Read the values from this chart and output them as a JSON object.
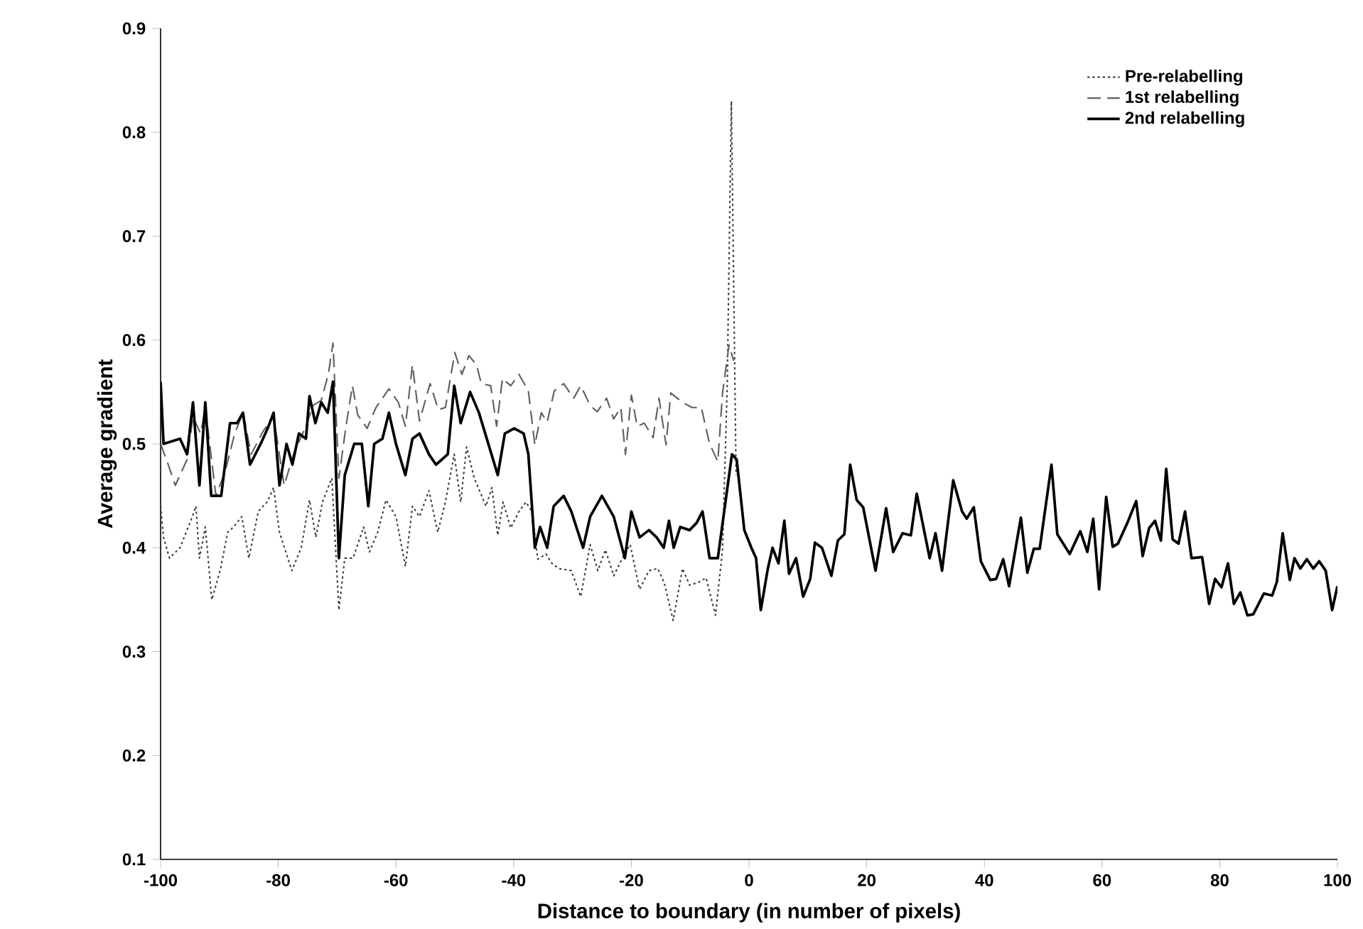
{
  "chart_data": {
    "type": "line",
    "xlabel": "Distance to boundary (in number of pixels)",
    "ylabel": "Average gradient",
    "xlim": [
      -100,
      100
    ],
    "ylim": [
      0.1,
      0.9
    ],
    "xticks": [
      -100,
      -80,
      -60,
      -40,
      -20,
      0,
      20,
      40,
      60,
      80,
      100
    ],
    "yticks": [
      0.1,
      0.2,
      0.3,
      0.4,
      0.5,
      0.6,
      0.7,
      0.8,
      0.9
    ],
    "grid": false,
    "legend": "top right",
    "marker": "none",
    "series": [
      {
        "name": "Pre-relabelling",
        "color": "#404040",
        "line_style": "dotted",
        "x": [
          -100,
          -99.5,
          -98.5,
          -96.7,
          -94.6,
          -94,
          -93.4,
          -92.4,
          -91.3,
          -89.8,
          -88.6,
          -87.6,
          -86.2,
          -85,
          -83.4,
          -81.9,
          -80.8,
          -79.8,
          -77.7,
          -76.1,
          -74.7,
          -73.6,
          -72.5,
          -70.9,
          -69.7,
          -68.7,
          -67.3,
          -65.5,
          -64.5,
          -63.1,
          -61.7,
          -60,
          -58.4,
          -57.2,
          -56,
          -54.4,
          -52.9,
          -51.6,
          -50.1,
          -49,
          -48,
          -46.7,
          -44.7,
          -43.7,
          -42.7,
          -41.8,
          -40.5,
          -39.1,
          -37.9,
          -36.9,
          -35.9,
          -34.5,
          -33.5,
          -32.3,
          -30.2,
          -28.6,
          -27,
          -25.7,
          -24.4,
          -23,
          -21.6,
          -20.2,
          -18.6,
          -17,
          -15.5,
          -14.4,
          -12.9,
          -11.3,
          -10.1,
          -8.5,
          -7.3,
          -5.7,
          -4.5,
          -3.7,
          -3,
          -2.2
        ],
        "values": [
          0.44,
          0.41,
          0.39,
          0.4,
          0.43,
          0.44,
          0.39,
          0.42,
          0.35,
          0.38,
          0.415,
          0.42,
          0.43,
          0.39,
          0.435,
          0.444,
          0.458,
          0.415,
          0.378,
          0.4,
          0.446,
          0.41,
          0.444,
          0.467,
          0.34,
          0.39,
          0.39,
          0.42,
          0.396,
          0.415,
          0.446,
          0.43,
          0.382,
          0.44,
          0.43,
          0.455,
          0.415,
          0.444,
          0.49,
          0.444,
          0.497,
          0.467,
          0.44,
          0.458,
          0.412,
          0.444,
          0.419,
          0.435,
          0.444,
          0.435,
          0.389,
          0.394,
          0.385,
          0.38,
          0.378,
          0.353,
          0.403,
          0.378,
          0.398,
          0.373,
          0.389,
          0.403,
          0.36,
          0.378,
          0.38,
          0.366,
          0.33,
          0.38,
          0.364,
          0.367,
          0.371,
          0.335,
          0.398,
          0.558,
          0.83,
          0.47
        ]
      },
      {
        "name": "1st relabelling",
        "color": "#606060",
        "line_style": "dashed",
        "x": [
          -100,
          -98.7,
          -97.5,
          -95.5,
          -94.5,
          -93.2,
          -92.4,
          -90.6,
          -89,
          -87.4,
          -86,
          -84.6,
          -82.6,
          -80.8,
          -79,
          -77.3,
          -75.3,
          -74.1,
          -72.7,
          -71.5,
          -70.7,
          -69.7,
          -68.5,
          -67.4,
          -66.5,
          -64.9,
          -63.4,
          -61.2,
          -59.6,
          -58.4,
          -57.2,
          -56,
          -54.2,
          -52.8,
          -51.6,
          -50,
          -48.8,
          -47.6,
          -46.3,
          -45.5,
          -43.9,
          -42.9,
          -41.9,
          -40.5,
          -39.1,
          -37.5,
          -36.4,
          -35.3,
          -34.3,
          -33.1,
          -31.5,
          -29.8,
          -28.6,
          -27,
          -25.8,
          -24.2,
          -23,
          -21.8,
          -21,
          -20,
          -19,
          -17.8,
          -16.3,
          -15.3,
          -14.1,
          -13.3,
          -11.3,
          -9.7,
          -8.1,
          -6.7,
          -5.3,
          -4.5,
          -3.4,
          -2.6
        ],
        "values": [
          0.5,
          0.48,
          0.46,
          0.485,
          0.526,
          0.51,
          0.535,
          0.45,
          0.474,
          0.51,
          0.53,
          0.49,
          0.512,
          0.526,
          0.46,
          0.492,
          0.517,
          0.537,
          0.542,
          0.567,
          0.597,
          0.467,
          0.517,
          0.556,
          0.528,
          0.515,
          0.535,
          0.553,
          0.54,
          0.517,
          0.576,
          0.522,
          0.558,
          0.533,
          0.535,
          0.588,
          0.567,
          0.585,
          0.576,
          0.558,
          0.556,
          0.517,
          0.563,
          0.556,
          0.567,
          0.551,
          0.499,
          0.53,
          0.521,
          0.551,
          0.558,
          0.544,
          0.556,
          0.537,
          0.531,
          0.544,
          0.524,
          0.535,
          0.49,
          0.547,
          0.517,
          0.52,
          0.506,
          0.544,
          0.499,
          0.549,
          0.54,
          0.535,
          0.535,
          0.5,
          0.483,
          0.549,
          0.595,
          0.58
        ]
      },
      {
        "name": "2nd relabelling",
        "color": "#000000",
        "line_style": "solid",
        "x": [
          -100,
          -99.5,
          -96.7,
          -95.5,
          -94.5,
          -93.4,
          -92.4,
          -91.4,
          -89.7,
          -88.2,
          -87,
          -86,
          -84.8,
          -83,
          -81.8,
          -80.8,
          -79.8,
          -78.6,
          -77.6,
          -76.5,
          -75.3,
          -74.7,
          -73.7,
          -72.7,
          -71.6,
          -70.7,
          -69.7,
          -68.7,
          -67.1,
          -65.8,
          -64.7,
          -63.7,
          -62.3,
          -61.2,
          -60,
          -58.4,
          -57.2,
          -56,
          -54.4,
          -53.2,
          -51.2,
          -50.1,
          -49,
          -47.4,
          -45.9,
          -44.3,
          -42.7,
          -41.5,
          -39.9,
          -38.3,
          -37.5,
          -36.4,
          -35.5,
          -34.3,
          -33.2,
          -31.5,
          -30.2,
          -28.2,
          -27,
          -25,
          -23,
          -21.1,
          -20,
          -18.6,
          -17,
          -15.7,
          -14.5,
          -13.6,
          -12.8,
          -11.7,
          -10.1,
          -8.9,
          -7.9,
          -6.7,
          -5.3,
          -4.1,
          -2.9,
          -2.1,
          -0.8,
          0.4,
          1.2,
          2,
          3.2,
          4,
          5,
          6,
          6.8,
          8,
          9.2,
          10.4,
          11.2,
          12.4,
          14,
          15.1,
          16.2,
          17.2,
          18.3,
          19.4,
          21.5,
          23.3,
          24.5,
          26.1,
          27.5,
          28.5,
          30.7,
          31.7,
          32.8,
          34.7,
          36.2,
          37,
          38.2,
          39.4,
          41,
          42,
          43.2,
          44.2,
          46.2,
          47.3,
          48.4,
          49.4,
          51.4,
          52.4,
          54.5,
          56.3,
          57.5,
          58.5,
          59.5,
          60.7,
          61.8,
          62.7,
          64.3,
          65.8,
          66.9,
          68,
          69,
          70,
          70.9,
          72,
          73,
          74.1,
          75.2,
          77,
          78.2,
          79.2,
          80.3,
          81.4,
          82.4,
          83.5,
          84.7,
          85.7,
          87.5,
          88.9,
          89.7,
          90.7,
          91.9,
          92.7,
          93.7,
          94.8,
          95.9,
          96.9,
          98,
          99.1,
          100
        ],
        "values": [
          0.56,
          0.5,
          0.505,
          0.49,
          0.54,
          0.46,
          0.54,
          0.45,
          0.45,
          0.52,
          0.52,
          0.53,
          0.48,
          0.5,
          0.515,
          0.53,
          0.46,
          0.5,
          0.48,
          0.51,
          0.505,
          0.546,
          0.52,
          0.54,
          0.53,
          0.56,
          0.39,
          0.47,
          0.5,
          0.5,
          0.44,
          0.5,
          0.505,
          0.53,
          0.5,
          0.47,
          0.505,
          0.51,
          0.49,
          0.48,
          0.49,
          0.556,
          0.52,
          0.55,
          0.53,
          0.5,
          0.47,
          0.51,
          0.515,
          0.51,
          0.49,
          0.4,
          0.42,
          0.4,
          0.44,
          0.45,
          0.435,
          0.4,
          0.43,
          0.45,
          0.43,
          0.39,
          0.435,
          0.41,
          0.417,
          0.41,
          0.4,
          0.426,
          0.4,
          0.42,
          0.417,
          0.424,
          0.435,
          0.39,
          0.39,
          0.44,
          0.49,
          0.485,
          0.417,
          0.4,
          0.39,
          0.34,
          0.38,
          0.4,
          0.385,
          0.426,
          0.375,
          0.39,
          0.353,
          0.37,
          0.405,
          0.4,
          0.373,
          0.407,
          0.413,
          0.48,
          0.446,
          0.439,
          0.378,
          0.438,
          0.396,
          0.414,
          0.412,
          0.452,
          0.39,
          0.414,
          0.378,
          0.465,
          0.435,
          0.428,
          0.439,
          0.387,
          0.369,
          0.37,
          0.389,
          0.363,
          0.429,
          0.376,
          0.399,
          0.399,
          0.48,
          0.413,
          0.394,
          0.416,
          0.396,
          0.428,
          0.36,
          0.449,
          0.401,
          0.404,
          0.424,
          0.445,
          0.392,
          0.419,
          0.426,
          0.407,
          0.476,
          0.408,
          0.404,
          0.435,
          0.39,
          0.391,
          0.346,
          0.37,
          0.362,
          0.385,
          0.346,
          0.357,
          0.335,
          0.336,
          0.356,
          0.354,
          0.367,
          0.414,
          0.369,
          0.39,
          0.38,
          0.389,
          0.38,
          0.387,
          0.378,
          0.34,
          0.363
        ]
      }
    ]
  }
}
